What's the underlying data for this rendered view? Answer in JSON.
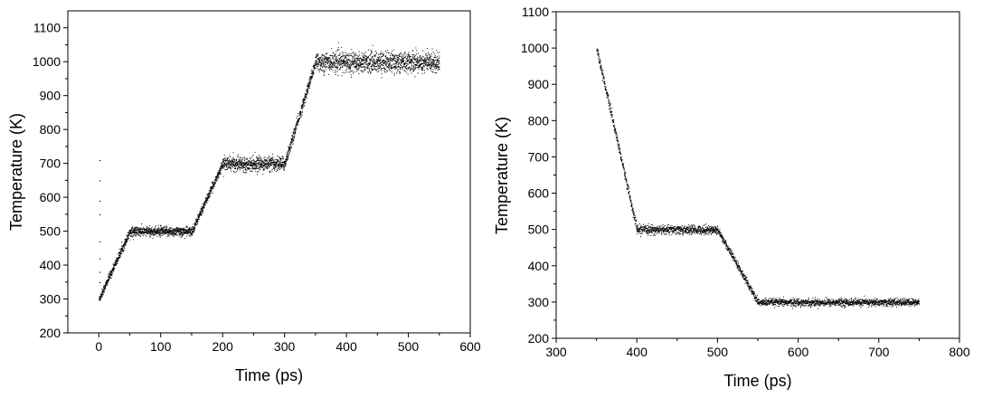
{
  "chart_data": [
    {
      "type": "scatter",
      "title": "",
      "xlabel": "Time (ps)",
      "ylabel": "Temperature (K)",
      "xlim": [
        -50,
        600
      ],
      "ylim": [
        200,
        1150
      ],
      "xticks": [
        0,
        100,
        200,
        300,
        400,
        500,
        600
      ],
      "xtick_labels": [
        "0",
        "100",
        "200",
        "300",
        "400",
        "500",
        "600"
      ],
      "yticks": [
        200,
        300,
        400,
        500,
        600,
        700,
        800,
        900,
        1000,
        1100
      ],
      "ytick_labels": [
        "200",
        "300",
        "400",
        "500",
        "600",
        "700",
        "800",
        "900",
        "1000",
        "1100"
      ],
      "grid": false,
      "marker_color": "#000000",
      "segments": [
        {
          "x": [
            0,
            50
          ],
          "y": [
            300,
            500
          ],
          "noise": 6
        },
        {
          "x": [
            50,
            150
          ],
          "y": [
            500,
            500
          ],
          "noise": 7
        },
        {
          "x": [
            150,
            200
          ],
          "y": [
            500,
            700
          ],
          "noise": 6
        },
        {
          "x": [
            200,
            300
          ],
          "y": [
            700,
            700
          ],
          "noise": 10
        },
        {
          "x": [
            300,
            350
          ],
          "y": [
            700,
            1000
          ],
          "noise": 8
        },
        {
          "x": [
            350,
            550
          ],
          "y": [
            1000,
            1000
          ],
          "noise": 15
        }
      ],
      "outliers": [
        {
          "x": 1,
          "y": 710
        },
        {
          "x": 1,
          "y": 650
        },
        {
          "x": 1,
          "y": 590
        },
        {
          "x": 1,
          "y": 550
        },
        {
          "x": 1,
          "y": 470
        },
        {
          "x": 1,
          "y": 420
        },
        {
          "x": 1,
          "y": 380
        },
        {
          "x": 1,
          "y": 350
        }
      ]
    },
    {
      "type": "scatter",
      "title": "",
      "xlabel": "Time (ps)",
      "ylabel": "Temperature (K)",
      "xlim": [
        300,
        800
      ],
      "ylim": [
        200,
        1100
      ],
      "xticks": [
        300,
        400,
        500,
        600,
        700,
        800
      ],
      "xtick_labels": [
        "300",
        "400",
        "500",
        "600",
        "700",
        "800"
      ],
      "yticks": [
        200,
        300,
        400,
        500,
        600,
        700,
        800,
        900,
        1000,
        1100
      ],
      "ytick_labels": [
        "200",
        "300",
        "400",
        "500",
        "600",
        "700",
        "800",
        "900",
        "1000",
        "1100"
      ],
      "grid": false,
      "marker_color": "#000000",
      "segments": [
        {
          "x": [
            350,
            400
          ],
          "y": [
            1000,
            500
          ],
          "noise": 6
        },
        {
          "x": [
            400,
            500
          ],
          "y": [
            500,
            500
          ],
          "noise": 6
        },
        {
          "x": [
            500,
            550
          ],
          "y": [
            500,
            300
          ],
          "noise": 5
        },
        {
          "x": [
            550,
            750
          ],
          "y": [
            300,
            300
          ],
          "noise": 5
        }
      ],
      "outliers": []
    }
  ]
}
